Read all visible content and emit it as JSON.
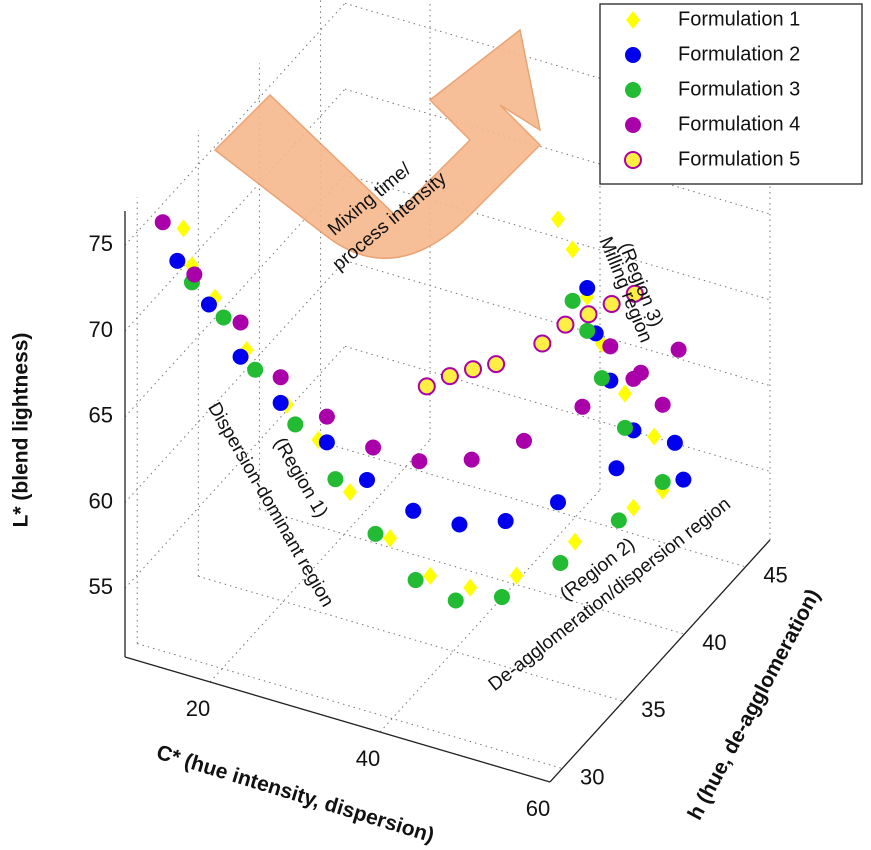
{
  "chart_data": {
    "type": "scatter3d",
    "xlabel": "C* (hue intensity, dispersion)",
    "ylabel": "h (hue, de-agglomeration)",
    "zlabel": "L* (blend lightness)",
    "xlim": [
      10,
      60
    ],
    "xticks": [
      20,
      40,
      60
    ],
    "ylim": [
      29,
      47
    ],
    "yticks": [
      30,
      35,
      40,
      45
    ],
    "zlim": [
      51,
      77
    ],
    "zticks": [
      55,
      60,
      65,
      70,
      75
    ],
    "grid": true,
    "legend": "upper right",
    "annotations": [
      "(Region 1)",
      "Dispersion-dominant region",
      "(Region 2)",
      "De-agglomeration/dispersion region",
      "(Region 3)",
      "Milling region",
      "Mixing time/",
      "process intensity"
    ],
    "series": [
      {
        "name": "Formulation 1",
        "color": "#ffff00",
        "marker": "diamond",
        "x": [
          14,
          15,
          17,
          20,
          24,
          27,
          30,
          34,
          38,
          42,
          46,
          50,
          54,
          56,
          55,
          53,
          51,
          50,
          49,
          48
        ],
        "y": [
          31,
          31,
          31.5,
          32,
          32.5,
          33,
          33.5,
          34,
          34.5,
          35,
          36,
          38,
          40,
          41,
          41,
          40,
          39.5,
          39,
          38.5,
          38
        ],
        "z": [
          75,
          73,
          71,
          68,
          65,
          63,
          60,
          57.5,
          55.5,
          55,
          55.5,
          56.5,
          57.5,
          58,
          61,
          64,
          67,
          70,
          73,
          75
        ]
      },
      {
        "name": "Formulation 2",
        "color": "#0000ee",
        "marker": "circle",
        "x": [
          14,
          17,
          20,
          24,
          28,
          32,
          36,
          40,
          44,
          48,
          52,
          56,
          57,
          54,
          52,
          51,
          50
        ],
        "y": [
          30.5,
          31,
          31.5,
          32,
          33,
          33.5,
          34.5,
          35.5,
          36.5,
          38,
          40,
          42,
          42,
          40,
          39.5,
          39,
          39
        ],
        "z": [
          73.5,
          71,
          68,
          65.5,
          63,
          61,
          59,
          58,
          58,
          58.5,
          59.5,
          60,
          58,
          62,
          65,
          68,
          70.5
        ]
      },
      {
        "name": "Formulation 3",
        "color": "#22bb33",
        "marker": "circle",
        "x": [
          15,
          18,
          21,
          25,
          29,
          33,
          37,
          41,
          45,
          49,
          53,
          56,
          53,
          51,
          50,
          49
        ],
        "y": [
          31,
          31.5,
          32,
          32.5,
          33,
          33.5,
          34,
          34.5,
          35.5,
          37.5,
          39.5,
          41,
          40,
          39.5,
          39,
          38.5
        ],
        "z": [
          72,
          70,
          67,
          64,
          61,
          58,
          55.5,
          54.5,
          54.5,
          55.5,
          57,
          58.5,
          62,
          65,
          68,
          70
        ]
      },
      {
        "name": "Formulation 4",
        "color": "#aa00aa",
        "marker": "circle",
        "x": [
          13,
          16,
          20,
          24,
          28,
          32,
          36,
          40,
          44,
          48,
          52,
          55,
          56,
          54,
          52
        ],
        "y": [
          30,
          30.5,
          31.5,
          32,
          33,
          34,
          35,
          36.5,
          38,
          40,
          42,
          43,
          41,
          40,
          39.5
        ],
        "z": [
          76,
          73,
          70,
          67,
          64.5,
          62.5,
          61.5,
          61,
          61.5,
          62.5,
          63.5,
          64.5,
          63,
          65,
          67
        ]
      },
      {
        "name": "Formulation 5",
        "color": "#ffee44",
        "edgecolor": "#aa00aa",
        "marker": "circle",
        "x": [
          34,
          36,
          38,
          40,
          44,
          46,
          48,
          50,
          52
        ],
        "y": [
          37,
          37.5,
          38,
          38.5,
          39.5,
          40,
          40.5,
          41,
          41.5
        ],
        "z": [
          64,
          64.5,
          64.8,
          65,
          66,
          67,
          67.5,
          68,
          68.5
        ]
      }
    ]
  }
}
